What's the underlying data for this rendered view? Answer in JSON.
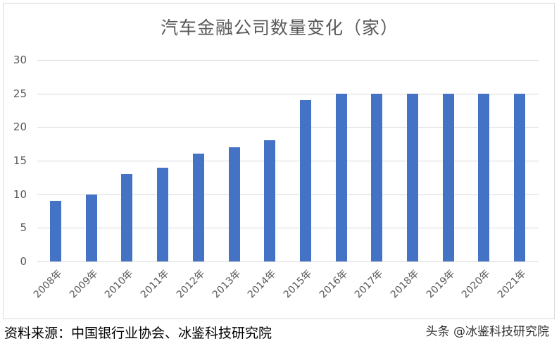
{
  "title": "汽车金融公司数量变化（家）",
  "source": "资料来源：中国银行业协会、冰鉴科技研究院",
  "watermark": "头条 @冰鉴科技研究院",
  "colors": {
    "bar": "#4472c4",
    "grid": "#d9d9d9",
    "text": "#595959"
  },
  "chart_data": {
    "type": "bar",
    "title": "汽车金融公司数量变化（家）",
    "xlabel": "",
    "ylabel": "",
    "ylim": [
      0,
      30
    ],
    "yticks": [
      0,
      5,
      10,
      15,
      20,
      25,
      30
    ],
    "grid": true,
    "legend": null,
    "categories": [
      "2008年",
      "2009年",
      "2010年",
      "2011年",
      "2012年",
      "2013年",
      "2014年",
      "2015年",
      "2016年",
      "2017年",
      "2018年",
      "2019年",
      "2020年",
      "2021年"
    ],
    "values": [
      9,
      10,
      13,
      14,
      16,
      17,
      18,
      24,
      25,
      25,
      25,
      25,
      25,
      25
    ]
  }
}
